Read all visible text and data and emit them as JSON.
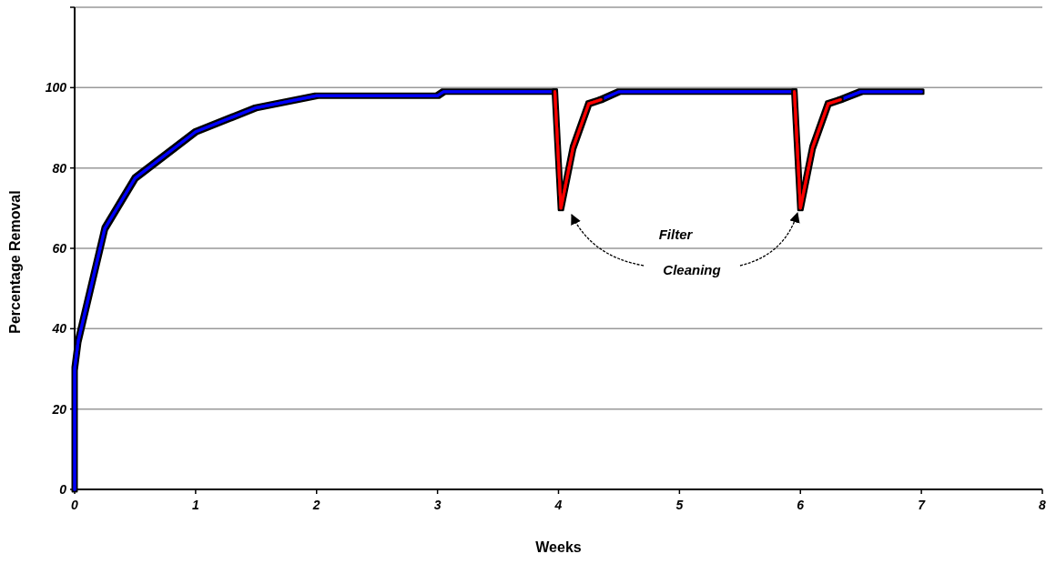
{
  "chart_data": {
    "type": "line",
    "xlabel": "Weeks",
    "ylabel": "Percentage Removal",
    "xlim": [
      0,
      8
    ],
    "xticks": [
      0,
      1,
      2,
      3,
      4,
      5,
      6,
      7,
      8
    ],
    "ylim": [
      0,
      120
    ],
    "yticks": [
      0,
      20,
      40,
      60,
      80,
      100,
      {
        "value": 120,
        "label": null
      }
    ],
    "grid": "y",
    "marker": "none",
    "line_style": "solid",
    "annotations": [
      "Filter Cleaning"
    ],
    "series": [
      {
        "color": "#0000ff",
        "x": [
          0,
          0,
          0.03,
          0.25,
          0.5,
          1,
          1.5,
          2,
          3,
          3.05,
          3.97,
          3.98,
          4.35,
          4.5,
          5.95,
          5.96,
          6.33,
          6.5,
          7
        ],
        "values": [
          0,
          30,
          37,
          65,
          77.5,
          89,
          95,
          98,
          98,
          99,
          99,
          null,
          97,
          99,
          99,
          null,
          97,
          99,
          99
        ]
      },
      {
        "color": "#ff0000",
        "x": [
          3.97,
          4.02,
          4.12,
          4.25,
          4.35,
          4.36,
          5.95,
          6.0,
          6.1,
          6.23,
          6.33
        ],
        "values": [
          99,
          70,
          85,
          96,
          97,
          null,
          99,
          70,
          85,
          96,
          97
        ]
      }
    ]
  }
}
